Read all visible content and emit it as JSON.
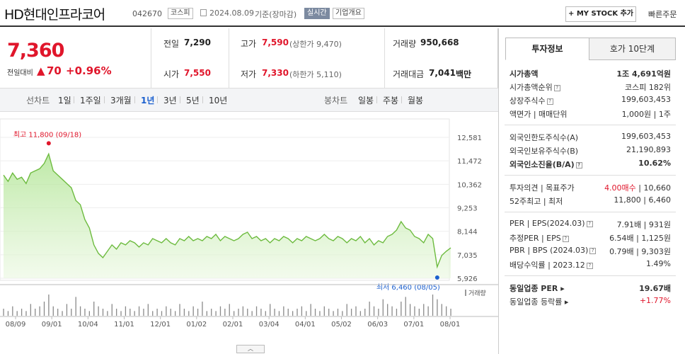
{
  "header": {
    "title": "HD현대인프라코어",
    "code": "042670",
    "market": "코스피",
    "date": "2024.08.09",
    "basis": "기준(장마감)",
    "realtime": "실시간",
    "company_overview": "기업개요",
    "my_stock": "+ MY STOCK 추가",
    "fast_order": "빠른주문"
  },
  "quote": {
    "price": "7,360",
    "change_label": "전일대비",
    "change_abs": "70",
    "change_pct": "+0.96%",
    "prev_label": "전일",
    "prev": "7,290",
    "high_label": "고가",
    "high": "7,590",
    "upper_limit": "(상한가 9,470)",
    "volume_label": "거래량",
    "volume": "950,668",
    "open_label": "시가",
    "open": "7,550",
    "low_label": "저가",
    "low": "7,330",
    "lower_limit": "(하한가 5,110)",
    "amount_label": "거래대금",
    "amount": "7,041",
    "amount_unit": "백만"
  },
  "tabs": {
    "line_label": "선차트",
    "periods": [
      "1일",
      "1주일",
      "3개월",
      "1년",
      "3년",
      "5년",
      "10년"
    ],
    "selected": "1년",
    "candle_label": "봉차트",
    "candle": [
      "일봉",
      "주봉",
      "월봉"
    ]
  },
  "chart_data": {
    "type": "area",
    "yticks": [
      "12,581",
      "11,472",
      "10,362",
      "9,253",
      "8,144",
      "7,035",
      "5,926"
    ],
    "ylim": [
      5926,
      12581
    ],
    "xticks": [
      "08/09",
      "09/01",
      "10/04",
      "11/01",
      "12/01",
      "01/02",
      "02/01",
      "03/04",
      "04/01",
      "05/02",
      "06/03",
      "07/01",
      "08/01"
    ],
    "high_label": "최고 11,800 (09/18)",
    "low_label": "최저 6,460 (08/05)",
    "volume_label": "거래량",
    "values": [
      10800,
      10500,
      10900,
      10600,
      10700,
      10400,
      10900,
      11000,
      11100,
      11350,
      11800,
      11000,
      10800,
      10600,
      10400,
      10200,
      9600,
      9400,
      8700,
      8300,
      7500,
      7100,
      6900,
      7200,
      7500,
      7300,
      7600,
      7500,
      7700,
      7600,
      7400,
      7600,
      7500,
      7800,
      7700,
      7600,
      7800,
      7600,
      7500,
      7800,
      7700,
      7900,
      7700,
      7800,
      7700,
      7900,
      7800,
      8000,
      7700,
      7900,
      7800,
      7700,
      7800,
      8000,
      8100,
      7800,
      7900,
      7700,
      7800,
      7600,
      7800,
      7700,
      7900,
      7800,
      7600,
      7800,
      7700,
      7900,
      7800,
      7700,
      7800,
      8000,
      7800,
      7700,
      7900,
      7800,
      7600,
      7800,
      7700,
      7900,
      7600,
      7800,
      7500,
      7700,
      7600,
      7900,
      8000,
      8200,
      8600,
      8300,
      8200,
      7900,
      7800,
      7600,
      8000,
      7800,
      6460,
      7000,
      7200,
      7360
    ],
    "volume": [
      3,
      2,
      4,
      2,
      3,
      2,
      5,
      3,
      4,
      6,
      9,
      4,
      3,
      2,
      5,
      3,
      8,
      4,
      3,
      2,
      6,
      4,
      3,
      2,
      5,
      3,
      2,
      4,
      3,
      2,
      4,
      3,
      5,
      2,
      3,
      2,
      4,
      3,
      2,
      5,
      3,
      2,
      4,
      3,
      6,
      2,
      3,
      2,
      4,
      3,
      5,
      2,
      3,
      4,
      3,
      2,
      4,
      3,
      2,
      5,
      3,
      2,
      4,
      3,
      2,
      3,
      4,
      2,
      5,
      3,
      2,
      4,
      3,
      2,
      3,
      2,
      5,
      3,
      4,
      2,
      3,
      6,
      4,
      3,
      7,
      5,
      4,
      3,
      6,
      8,
      5,
      4,
      3,
      5,
      4,
      9,
      7,
      5,
      4,
      3
    ]
  },
  "side": {
    "tab_invest": "투자정보",
    "tab_orderbook": "호가 10단계",
    "mcap_label": "시가총액",
    "mcap": "1조 4,691억원",
    "mcap_rank_label": "시가총액순위",
    "mcap_rank": "코스피 182위",
    "shares_label": "상장주식수",
    "shares": "199,603,453",
    "par_label": "액면가 | 매매단위",
    "par": "1,000원 | 1주",
    "foreign_limit_label": "외국인한도주식수(A)",
    "foreign_limit": "199,603,453",
    "foreign_hold_label": "외국인보유주식수(B)",
    "foreign_hold": "21,190,893",
    "foreign_rate_label": "외국인소진율(B/A)",
    "foreign_rate": "10.62%",
    "opinion_label": "투자의견 | 목표주가",
    "opinion": "4.00매수",
    "target": "10,660",
    "w52_label": "52주최고 | 최저",
    "w52": "11,800 | 6,460",
    "per_label": "PER | EPS(2024.03)",
    "per": "7.91배 | 931원",
    "eper_label": "추정PER | EPS",
    "eper": "6.54배 | 1,125원",
    "pbr_label": "PBR | BPS (2024.03)",
    "pbr": "0.79배 | 9,303원",
    "div_label": "배당수익률 | 2023.12",
    "div": "1.49%",
    "ind_per_label": "동일업종 PER",
    "ind_per": "19.67배",
    "ind_chg_label": "동일업종 등락률",
    "ind_chg": "+1.77%"
  }
}
